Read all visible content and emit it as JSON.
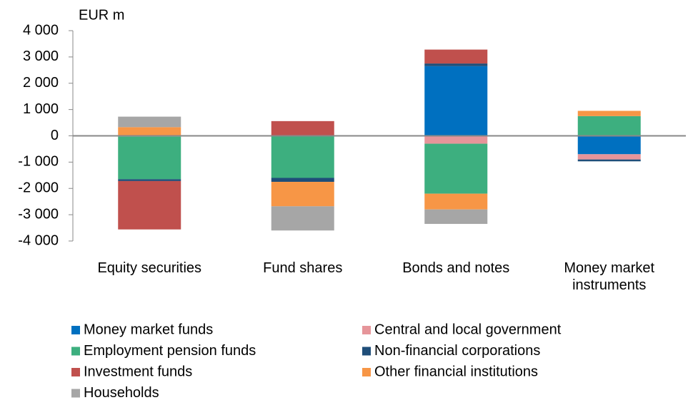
{
  "chart_data": {
    "type": "stacked-bar",
    "y_label": "EUR m",
    "categories": [
      "Equity securities",
      "Fund shares",
      "Bonds and notes",
      "Money market instruments"
    ],
    "series": [
      {
        "name": "Money market funds",
        "color": "#0070c0",
        "values": [
          0,
          0,
          2650,
          -700
        ]
      },
      {
        "name": "Central and local government",
        "color": "#e6959a",
        "values": [
          -30,
          0,
          -300,
          -200
        ]
      },
      {
        "name": "Employment pension funds",
        "color": "#3daf7f",
        "values": [
          -1620,
          -1600,
          -1900,
          750
        ]
      },
      {
        "name": "Non-financial corporations",
        "color": "#1f4e79",
        "values": [
          -70,
          -150,
          100,
          -70
        ]
      },
      {
        "name": "Investment funds",
        "color": "#c0504d",
        "values": [
          -1840,
          560,
          530,
          0
        ]
      },
      {
        "name": "Other financial institutions",
        "color": "#f79646",
        "values": [
          330,
          -930,
          -600,
          200
        ]
      },
      {
        "name": "Households",
        "color": "#a6a6a6",
        "values": [
          400,
          -920,
          -550,
          0
        ]
      }
    ],
    "ylim": [
      -4000,
      4000
    ],
    "yticks": [
      {
        "value": -4000,
        "label": "-4 000"
      },
      {
        "value": -3000,
        "label": "-3 000"
      },
      {
        "value": -2000,
        "label": "-2 000"
      },
      {
        "value": -1000,
        "label": "-1 000"
      },
      0,
      {
        "value": 1000,
        "label": "1 000"
      },
      {
        "value": 2000,
        "label": "2 000"
      },
      {
        "value": 3000,
        "label": "3 000"
      },
      {
        "value": 4000,
        "label": "4 000"
      }
    ]
  }
}
